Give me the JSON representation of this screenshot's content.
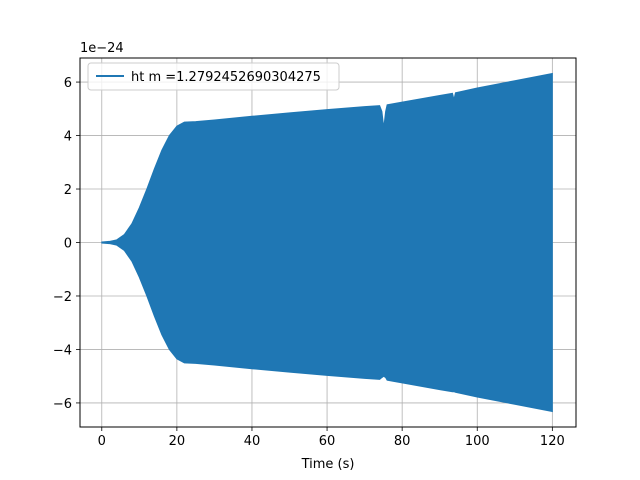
{
  "chart_data": {
    "type": "area",
    "title": "",
    "xlabel": "Time (s)",
    "ylabel": "",
    "y_offset_label": "1e−24",
    "xlim": [
      -5.8,
      126.3
    ],
    "ylim": [
      -6.9,
      6.9
    ],
    "x_ticks": [
      0,
      20,
      40,
      60,
      80,
      100,
      120
    ],
    "x_tick_labels": [
      "0",
      "20",
      "40",
      "60",
      "80",
      "100",
      "120"
    ],
    "y_ticks": [
      -6,
      -4,
      -2,
      0,
      2,
      4,
      6
    ],
    "y_tick_labels": [
      "−6",
      "−4",
      "−2",
      "0",
      "2",
      "4",
      "6"
    ],
    "grid": true,
    "legend": {
      "placement": "top-left",
      "entries": [
        "ht m =1.2792452690304275"
      ]
    },
    "series": [
      {
        "name": "ht m =1.2792452690304275",
        "color": "#1f77b4",
        "note_shape": "oscillating signal shown as envelope (upper/lower amplitude vs time)",
        "x": [
          0,
          2,
          4,
          6,
          8,
          10,
          12,
          14,
          16,
          18,
          20,
          22,
          25,
          30,
          40,
          50,
          60,
          70,
          74,
          74.6,
          75.1,
          75.6,
          76,
          80,
          90,
          93.4,
          93.8,
          94.2,
          100,
          110,
          120
        ],
        "upper": [
          0.02,
          0.04,
          0.1,
          0.3,
          0.7,
          1.3,
          2.0,
          2.75,
          3.45,
          4.0,
          4.35,
          4.5,
          4.52,
          4.58,
          4.72,
          4.85,
          4.97,
          5.08,
          5.12,
          4.9,
          4.3,
          4.9,
          5.15,
          5.25,
          5.5,
          5.58,
          5.35,
          5.6,
          5.78,
          6.05,
          6.32
        ],
        "lower": [
          -0.02,
          -0.04,
          -0.1,
          -0.3,
          -0.7,
          -1.3,
          -2.0,
          -2.75,
          -3.45,
          -4.0,
          -4.35,
          -4.5,
          -4.52,
          -4.58,
          -4.72,
          -4.85,
          -4.97,
          -5.08,
          -5.12,
          -5.05,
          -5.0,
          -5.05,
          -5.15,
          -5.25,
          -5.5,
          -5.58,
          -5.58,
          -5.6,
          -5.78,
          -6.05,
          -6.32
        ]
      }
    ]
  }
}
